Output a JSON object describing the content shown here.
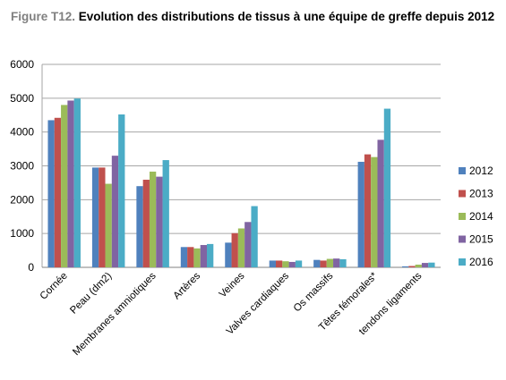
{
  "title": {
    "figure_label": "Figure T12.",
    "text": "Evolution des distributions de tissus à une équipe de greffe depuis 2012"
  },
  "chart_data": {
    "type": "bar",
    "title": "Evolution des distributions de tissus à une équipe de greffe depuis 2012",
    "xlabel": "",
    "ylabel": "",
    "ylim": [
      0,
      6000
    ],
    "yticks": [
      0,
      1000,
      2000,
      3000,
      4000,
      5000,
      6000
    ],
    "grid": true,
    "legend_position": "right",
    "categories": [
      "Cornée",
      "Peau (dm2)",
      "Membranes amniotiques",
      "Artères",
      "Veines",
      "Valves cardiaques",
      "Os massifs",
      "Têtes fémorales*",
      "tendons ligaments"
    ],
    "series": [
      {
        "name": "2012",
        "color": "#4f81bd",
        "values": [
          4350,
          2950,
          2400,
          600,
          730,
          200,
          220,
          3120,
          30
        ]
      },
      {
        "name": "2013",
        "color": "#c0504d",
        "values": [
          4420,
          2950,
          2590,
          600,
          1010,
          200,
          200,
          3340,
          40
        ]
      },
      {
        "name": "2014",
        "color": "#9bbb59",
        "values": [
          4800,
          2470,
          2830,
          560,
          1150,
          180,
          250,
          3260,
          80
        ]
      },
      {
        "name": "2015",
        "color": "#8064a2",
        "values": [
          4930,
          3300,
          2680,
          660,
          1340,
          160,
          260,
          3770,
          130
        ]
      },
      {
        "name": "2016",
        "color": "#4bacc6",
        "values": [
          4990,
          4520,
          3170,
          690,
          1810,
          200,
          240,
          4690,
          140
        ]
      }
    ]
  }
}
